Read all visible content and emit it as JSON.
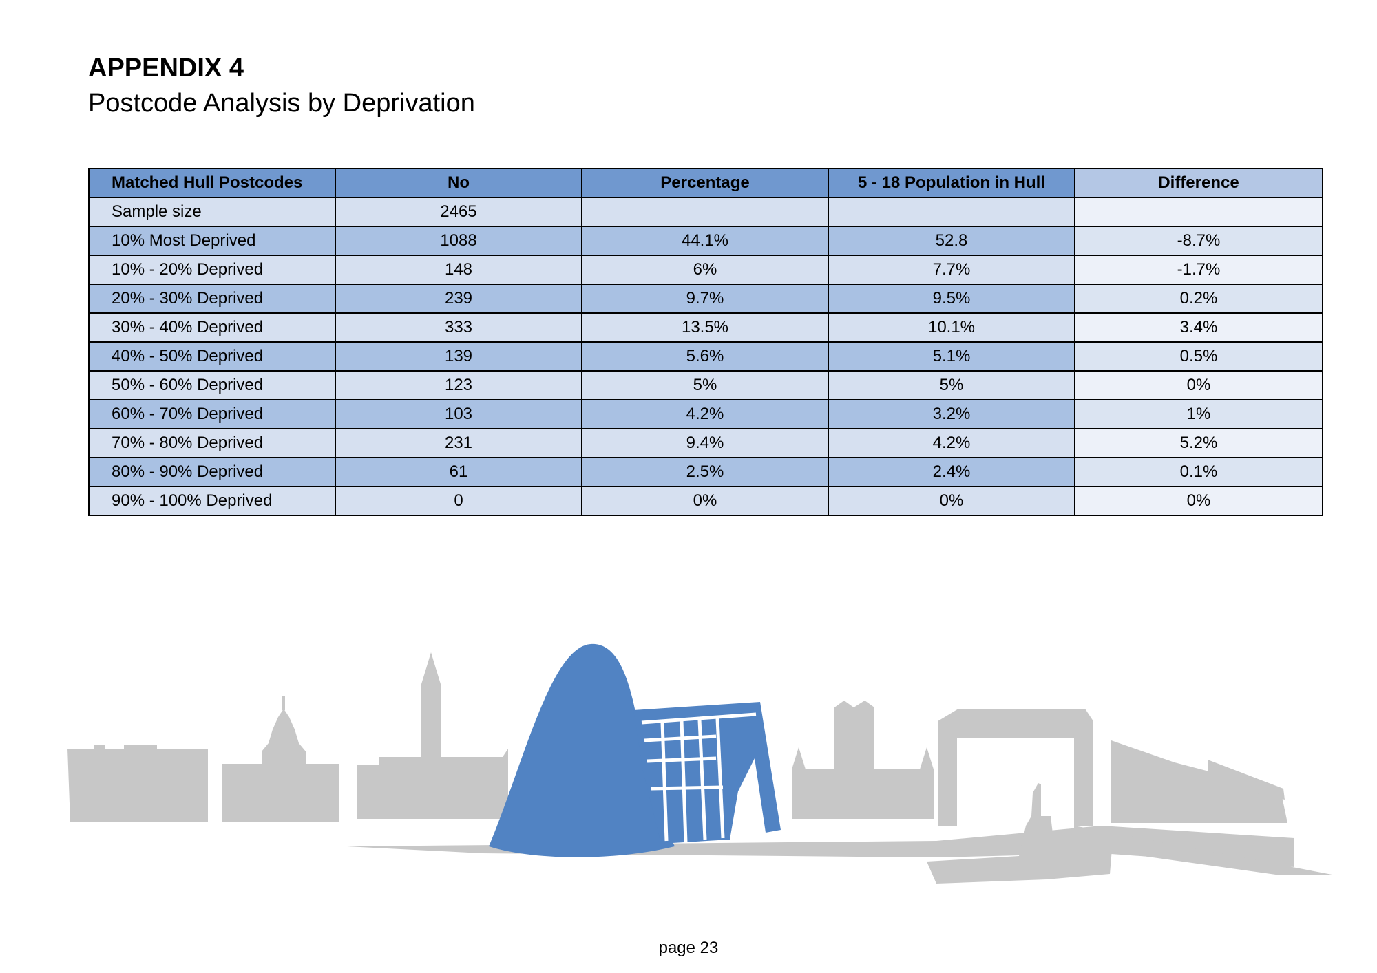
{
  "heading": {
    "appendix": "APPENDIX 4",
    "subtitle": "Postcode Analysis by Deprivation"
  },
  "table": {
    "headers": [
      "Matched Hull Postcodes",
      "No",
      "Percentage",
      "5 - 18 Population in Hull",
      "Difference"
    ],
    "rows": [
      [
        "Sample size",
        "2465",
        "",
        "",
        ""
      ],
      [
        "10% Most Deprived",
        "1088",
        "44.1%",
        "52.8",
        "-8.7%"
      ],
      [
        "10% - 20% Deprived",
        "148",
        "6%",
        "7.7%",
        "-1.7%"
      ],
      [
        "20% - 30% Deprived",
        "239",
        "9.7%",
        "9.5%",
        "0.2%"
      ],
      [
        "30% - 40% Deprived",
        "333",
        "13.5%",
        "10.1%",
        "3.4%"
      ],
      [
        "40% - 50% Deprived",
        "139",
        "5.6%",
        "5.1%",
        "0.5%"
      ],
      [
        "50% - 60% Deprived",
        "123",
        "5%",
        "5%",
        "0%"
      ],
      [
        "60% - 70% Deprived",
        "103",
        "4.2%",
        "3.2%",
        "1%"
      ],
      [
        "70% - 80% Deprived",
        "231",
        "9.4%",
        "4.2%",
        "5.2%"
      ],
      [
        "80% - 90% Deprived",
        "61",
        "2.5%",
        "2.4%",
        "0.1%"
      ],
      [
        "90% - 100% Deprived",
        "0",
        "0%",
        "0%",
        "0%"
      ]
    ]
  },
  "footer": {
    "page": "page 23"
  },
  "colors": {
    "header_fill": "#7098cf",
    "row_light": "#d6e0f0",
    "row_dark": "#a9c1e3",
    "skyline_grey": "#c7c7c7",
    "skyline_blue": "#5183c3"
  }
}
